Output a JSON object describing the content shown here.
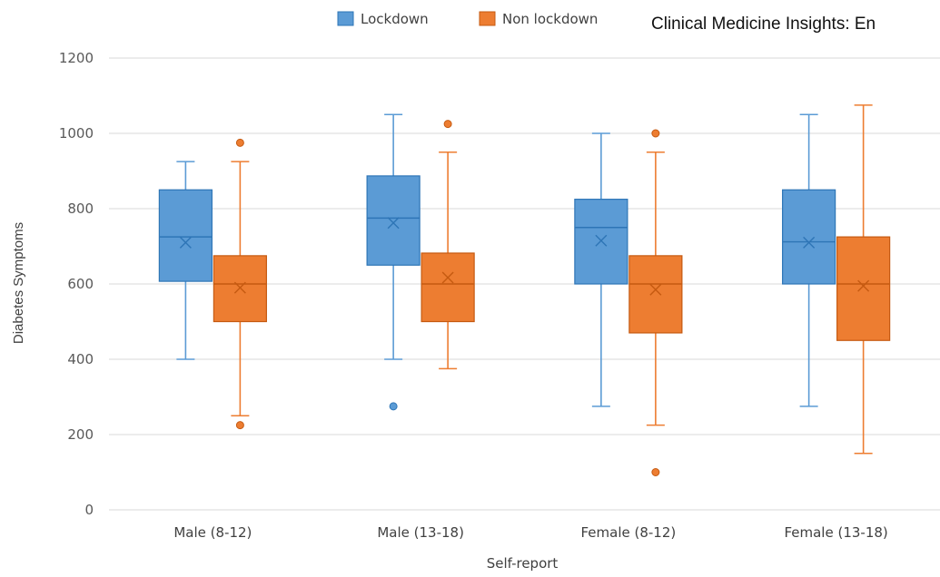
{
  "header_text": "Clinical Medicine Insights: En",
  "chart_data": {
    "type": "box",
    "xlabel": "Self-report",
    "ylabel": "Diabetes Symptoms",
    "ylim": [
      0,
      1200
    ],
    "yticks": [
      0,
      200,
      400,
      600,
      800,
      1000,
      1200
    ],
    "grid": true,
    "legend_position": "top",
    "categories": [
      "Male (8-12)",
      "Male (13-18)",
      "Female (8-12)",
      "Female (13-18)"
    ],
    "series": [
      {
        "name": "Lockdown",
        "color": "#5b9bd5",
        "stroke": "#2e75b6",
        "boxes": [
          {
            "min": 400,
            "q1": 607,
            "median": 725,
            "q3": 850,
            "max": 925,
            "mean": 710,
            "outliers": []
          },
          {
            "min": 400,
            "q1": 650,
            "median": 775,
            "q3": 887,
            "max": 1050,
            "mean": 762,
            "outliers": [
              275
            ]
          },
          {
            "min": 275,
            "q1": 600,
            "median": 750,
            "q3": 825,
            "max": 1000,
            "mean": 715,
            "outliers": []
          },
          {
            "min": 275,
            "q1": 600,
            "median": 712,
            "q3": 850,
            "max": 1050,
            "mean": 710,
            "outliers": []
          }
        ]
      },
      {
        "name": "Non lockdown",
        "color": "#ed7d31",
        "stroke": "#c55a11",
        "boxes": [
          {
            "min": 250,
            "q1": 500,
            "median": 600,
            "q3": 675,
            "max": 925,
            "mean": 590,
            "outliers": [
              225,
              975
            ]
          },
          {
            "min": 375,
            "q1": 500,
            "median": 600,
            "q3": 682,
            "max": 950,
            "mean": 617,
            "outliers": [
              1025
            ]
          },
          {
            "min": 225,
            "q1": 470,
            "median": 600,
            "q3": 675,
            "max": 950,
            "mean": 585,
            "outliers": [
              100,
              1000
            ]
          },
          {
            "min": 150,
            "q1": 450,
            "median": 600,
            "q3": 725,
            "max": 1075,
            "mean": 595,
            "outliers": []
          }
        ]
      }
    ]
  }
}
